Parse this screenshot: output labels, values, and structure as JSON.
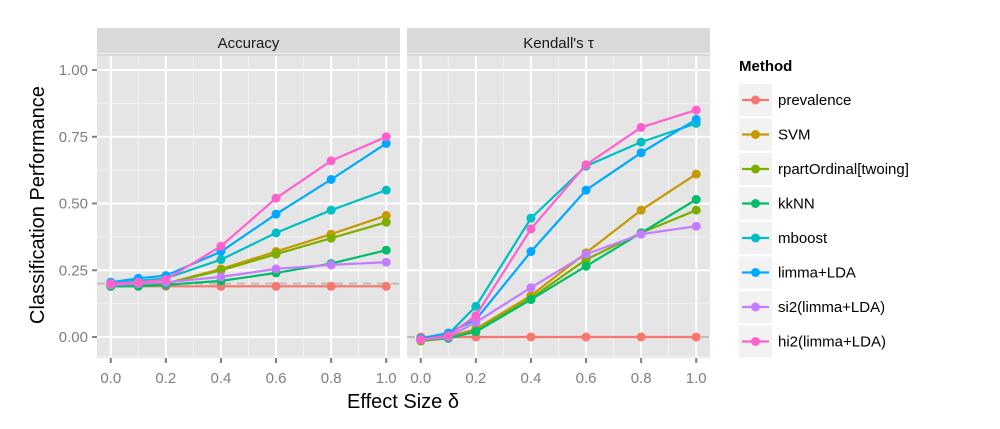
{
  "chart_data": {
    "type": "line",
    "xlabel": "Effect Size δ",
    "ylabel": "Classification Performance",
    "ylim": [
      -0.04,
      1.09
    ],
    "xlim": [
      -0.05,
      1.05
    ],
    "yticks": [
      0.0,
      0.25,
      0.5,
      0.75,
      1.0
    ],
    "ytick_labels": [
      "0.00",
      "0.25",
      "0.50",
      "0.75",
      "1.00"
    ],
    "xticks": [
      0.0,
      0.2,
      0.4,
      0.6,
      0.8,
      1.0
    ],
    "xtick_labels": [
      "0.0",
      "0.2",
      "0.4",
      "0.6",
      "0.8",
      "1.0"
    ],
    "grid": true,
    "legend": {
      "title": "Method",
      "placement": "right"
    },
    "x": [
      0.0,
      0.1,
      0.2,
      0.4,
      0.6,
      0.8,
      1.0
    ],
    "panels": [
      {
        "title": "Accuracy",
        "reference_line": 0.2,
        "series": [
          {
            "name": "prevalence",
            "color": "#F8766D",
            "values": [
              0.19,
              0.19,
              0.19,
              0.19,
              0.19,
              0.19,
              0.19
            ]
          },
          {
            "name": "SVM",
            "color": "#C49A00",
            "values": [
              0.19,
              0.195,
              0.2,
              0.255,
              0.32,
              0.385,
              0.455
            ]
          },
          {
            "name": "rpartOrdinal[twoing]",
            "color": "#7CAE00",
            "values": [
              0.19,
              0.195,
              0.2,
              0.25,
              0.31,
              0.37,
              0.43
            ]
          },
          {
            "name": "kkNN",
            "color": "#00BE67",
            "values": [
              0.19,
              0.19,
              0.195,
              0.21,
              0.24,
              0.275,
              0.325
            ]
          },
          {
            "name": "mboost",
            "color": "#00BFC4",
            "values": [
              0.205,
              0.21,
              0.22,
              0.29,
              0.39,
              0.475,
              0.55
            ]
          },
          {
            "name": "limma+LDA",
            "color": "#00A9FF",
            "values": [
              0.205,
              0.22,
              0.23,
              0.32,
              0.46,
              0.59,
              0.725
            ]
          },
          {
            "name": "si2(limma+LDA)",
            "color": "#C77CFF",
            "values": [
              0.195,
              0.2,
              0.205,
              0.225,
              0.255,
              0.27,
              0.28
            ]
          },
          {
            "name": "hi2(limma+LDA)",
            "color": "#FF61CC",
            "values": [
              0.2,
              0.205,
              0.215,
              0.34,
              0.52,
              0.66,
              0.75
            ]
          }
        ]
      },
      {
        "title": "Kendall's τ",
        "reference_line": 0.0,
        "series": [
          {
            "name": "prevalence",
            "color": "#F8766D",
            "values": [
              0.0,
              0.0,
              0.0,
              0.0,
              0.0,
              0.0,
              0.0
            ]
          },
          {
            "name": "SVM",
            "color": "#C49A00",
            "values": [
              -0.005,
              0.0,
              0.03,
              0.155,
              0.315,
              0.475,
              0.61
            ]
          },
          {
            "name": "rpartOrdinal[twoing]",
            "color": "#7CAE00",
            "values": [
              -0.015,
              -0.005,
              0.025,
              0.145,
              0.29,
              0.39,
              0.475
            ]
          },
          {
            "name": "kkNN",
            "color": "#00BE67",
            "values": [
              -0.01,
              -0.005,
              0.02,
              0.14,
              0.265,
              0.39,
              0.515
            ]
          },
          {
            "name": "mboost",
            "color": "#00BFC4",
            "values": [
              -0.005,
              0.01,
              0.115,
              0.445,
              0.64,
              0.73,
              0.8
            ]
          },
          {
            "name": "limma+LDA",
            "color": "#00A9FF",
            "values": [
              -0.005,
              0.015,
              0.065,
              0.32,
              0.55,
              0.69,
              0.815
            ]
          },
          {
            "name": "si2(limma+LDA)",
            "color": "#C77CFF",
            "values": [
              -0.01,
              0.0,
              0.055,
              0.185,
              0.31,
              0.385,
              0.415
            ]
          },
          {
            "name": "hi2(limma+LDA)",
            "color": "#FF61CC",
            "values": [
              -0.01,
              0.005,
              0.08,
              0.405,
              0.645,
              0.785,
              0.85
            ]
          }
        ]
      }
    ]
  }
}
